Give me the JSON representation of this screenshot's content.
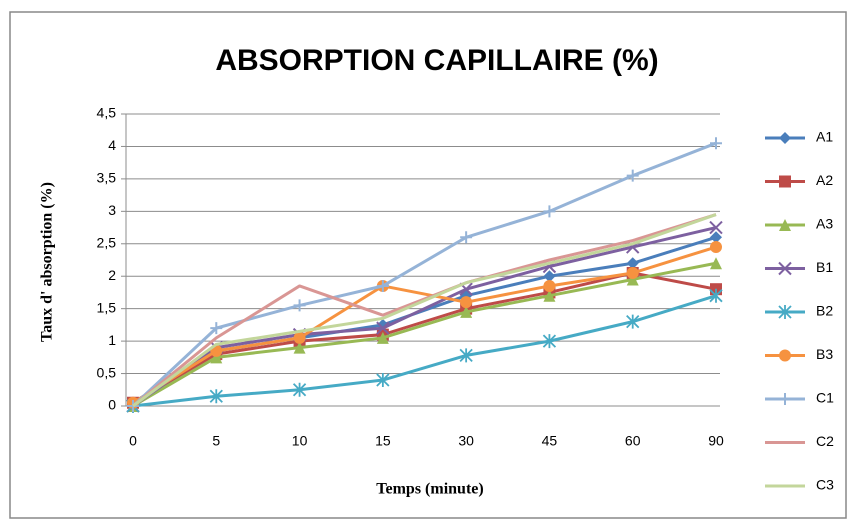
{
  "chart_data": {
    "type": "line",
    "title": "ABSORPTION CAPILLAIRE (%)",
    "x_label": "Temps (minute)",
    "y_label": "Taux d' absorption (%)",
    "categories": [
      "0",
      "5",
      "10",
      "15",
      "30",
      "45",
      "60",
      "90"
    ],
    "ylim": [
      0,
      4.5
    ],
    "yticks": [
      0,
      {
        "value": 0.5,
        "label": "0,5"
      },
      1,
      {
        "value": 1.5,
        "label": "1,5"
      },
      2,
      {
        "value": 2.5,
        "label": "2,5"
      },
      3,
      {
        "value": 3.5,
        "label": "3,5"
      },
      4,
      {
        "value": 4.5,
        "label": "4,5"
      }
    ],
    "grid": true,
    "legend": "right",
    "series": [
      {
        "name": "A1",
        "color": "#4a7ebb",
        "marker": "diamond",
        "values": [
          0.05,
          0.85,
          1.05,
          1.25,
          1.7,
          2.0,
          2.2,
          2.6
        ]
      },
      {
        "name": "A2",
        "color": "#be4b48",
        "marker": "square",
        "values": [
          0.05,
          0.8,
          1.0,
          1.1,
          1.5,
          1.75,
          2.05,
          1.8
        ]
      },
      {
        "name": "A3",
        "color": "#98b954",
        "marker": "triangle",
        "values": [
          0,
          0.75,
          0.9,
          1.05,
          1.45,
          1.7,
          1.95,
          2.2
        ]
      },
      {
        "name": "B1",
        "color": "#7d60a0",
        "marker": "x",
        "values": [
          0,
          0.9,
          1.1,
          1.2,
          1.8,
          2.15,
          2.45,
          2.75
        ]
      },
      {
        "name": "B2",
        "color": "#46aac5",
        "marker": "star",
        "values": [
          0,
          0.15,
          0.25,
          0.4,
          0.78,
          1.0,
          1.3,
          1.7
        ]
      },
      {
        "name": "B3",
        "color": "#f69240",
        "marker": "circle",
        "values": [
          0.05,
          0.85,
          1.05,
          1.85,
          1.6,
          1.85,
          2.05,
          2.45
        ]
      },
      {
        "name": "C1",
        "color": "#95b3d7",
        "marker": "plus",
        "values": [
          0,
          1.2,
          1.55,
          1.85,
          2.6,
          3.0,
          3.55,
          4.05
        ]
      },
      {
        "name": "C2",
        "color": "#d99694",
        "marker": "none",
        "values": [
          0,
          1.05,
          1.85,
          1.4,
          1.9,
          2.25,
          2.55,
          2.95
        ]
      },
      {
        "name": "C3",
        "color": "#c3d69b",
        "marker": "none",
        "values": [
          0,
          0.95,
          1.15,
          1.35,
          1.9,
          2.2,
          2.5,
          2.95
        ]
      }
    ]
  }
}
